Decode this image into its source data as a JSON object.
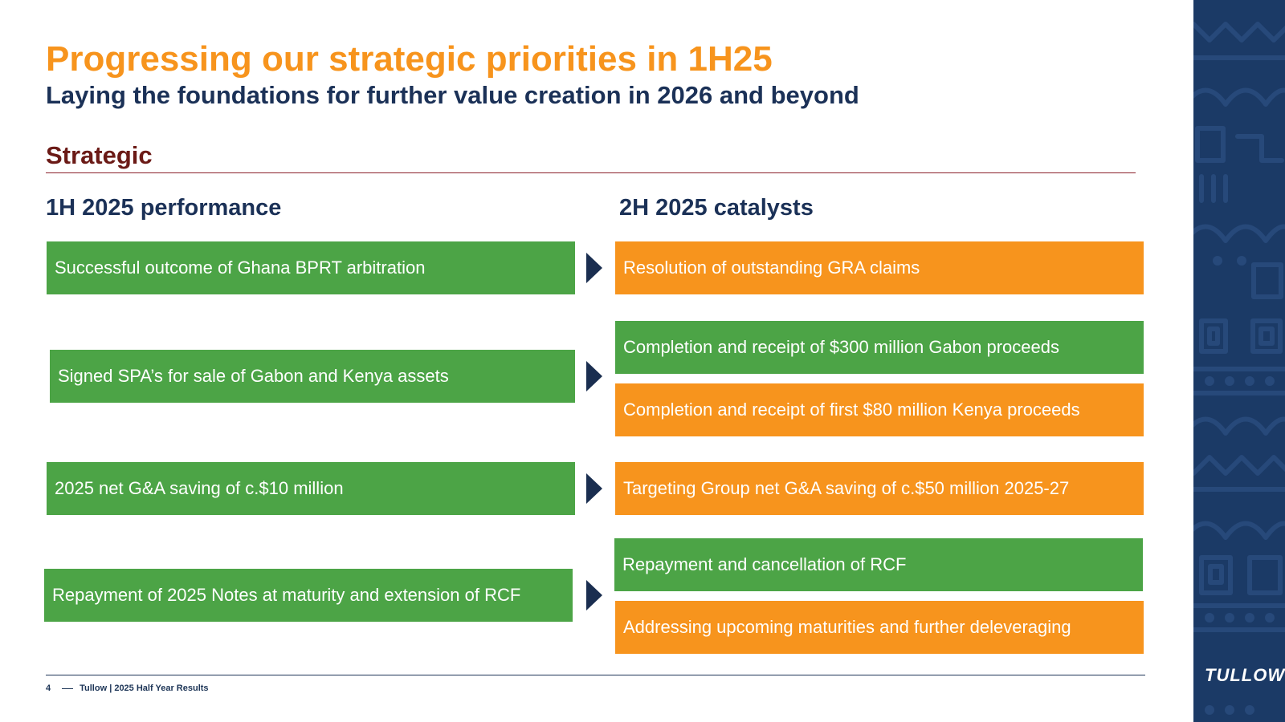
{
  "title": "Progressing our strategic priorities in 1H25",
  "subtitle": "Laying the foundations for further value creation in 2026 and beyond",
  "section_label": "Strategic",
  "left_column": {
    "heading": "1H 2025 performance",
    "items": [
      "Successful outcome of Ghana BPRT arbitration",
      "Signed SPA’s for sale of Gabon and Kenya assets",
      "2025 net G&A saving of c.$10 million",
      "Repayment of 2025 Notes at maturity and extension of RCF"
    ]
  },
  "right_column": {
    "heading": "2H 2025 catalysts",
    "items": [
      "Resolution of outstanding GRA claims",
      "Completion and receipt of $300 million Gabon proceeds",
      "Completion and receipt of first $80 million Kenya proceeds",
      "Targeting Group net G&A saving of c.$50 million 2025-27",
      "Repayment and cancellation of RCF",
      "Addressing upcoming maturities and further deleveraging"
    ]
  },
  "footer": {
    "page_number": "4",
    "text": "Tullow | 2025 Half Year Results"
  },
  "logo_text": "TULLOW",
  "colors": {
    "orange": "#f7941d",
    "green": "#4ca446",
    "navy": "#1b3157",
    "section_red": "#6b1a16",
    "sidebar_blue": "#1b3a66"
  },
  "icons": [
    "right-arrow-icon"
  ]
}
